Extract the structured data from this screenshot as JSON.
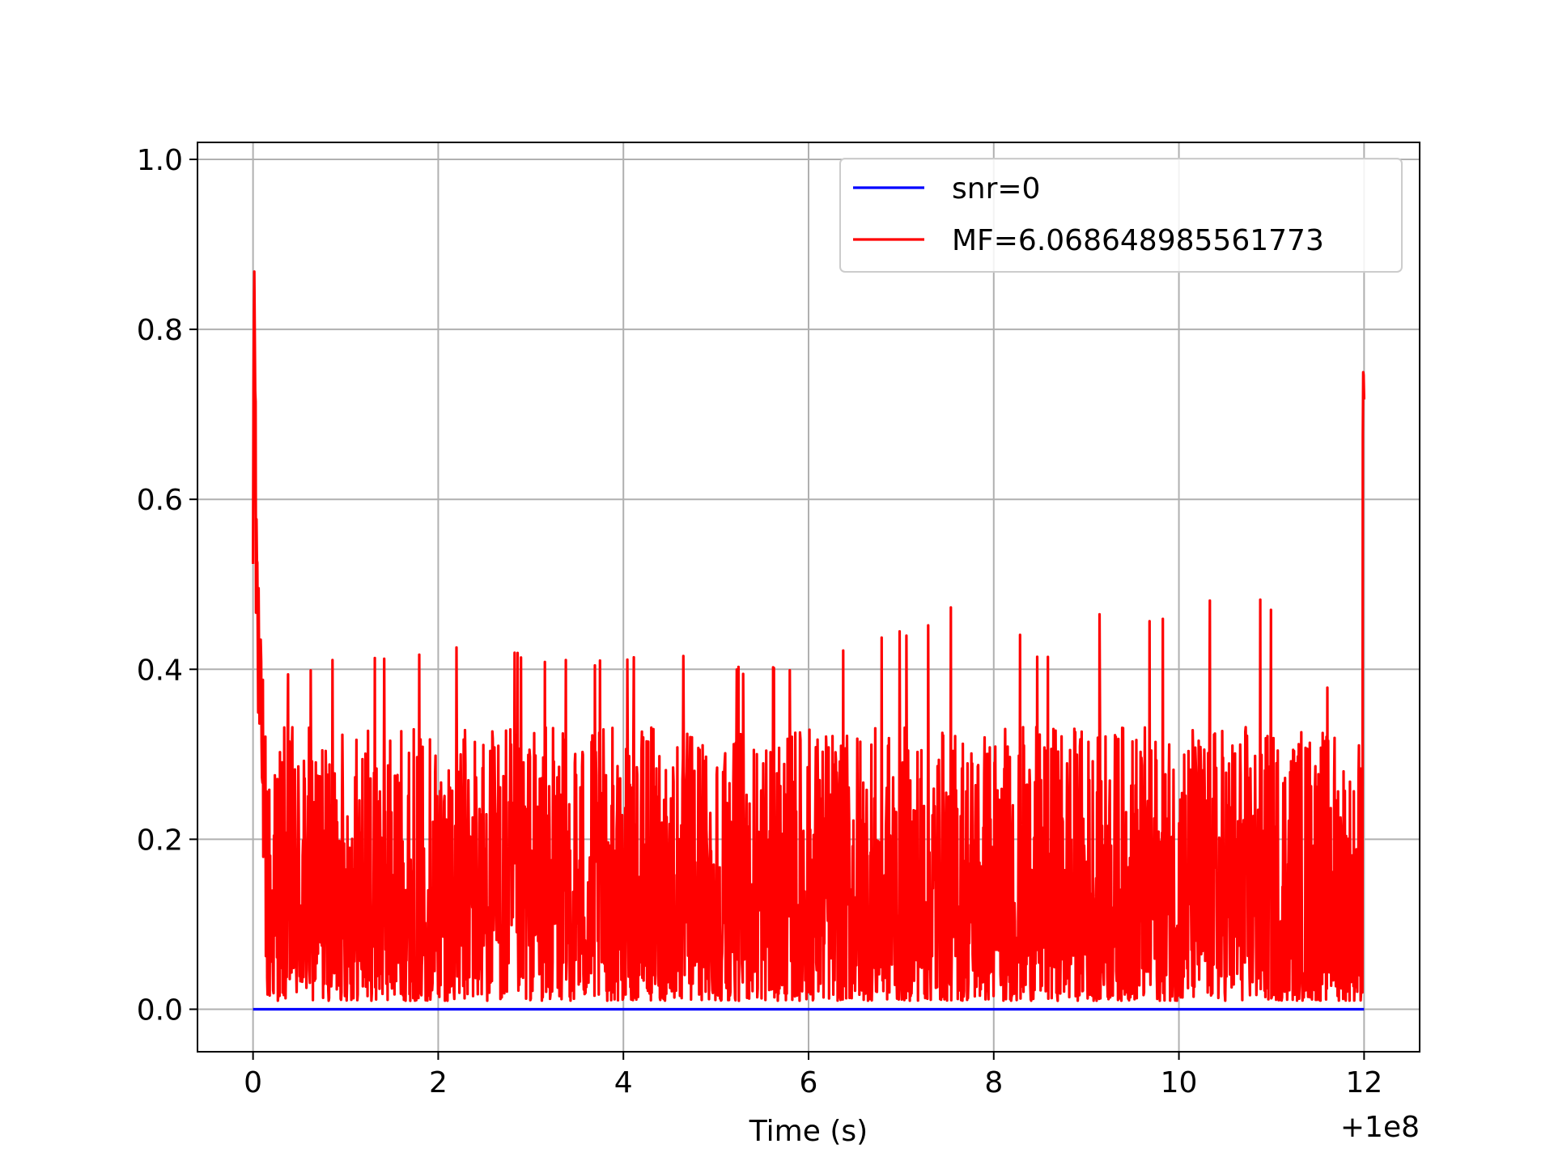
{
  "chart_data": {
    "type": "line",
    "title": "",
    "xlabel": "Time (s)",
    "ylabel": "",
    "x_offset_label": "+1e8",
    "xlim": [
      -0.6,
      12.6
    ],
    "ylim": [
      -0.05,
      1.02
    ],
    "x_ticks": [
      0,
      2,
      4,
      6,
      8,
      10,
      12
    ],
    "x_tick_labels": [
      "0",
      "2",
      "4",
      "6",
      "8",
      "10",
      "12"
    ],
    "y_ticks": [
      0.0,
      0.2,
      0.4,
      0.6,
      0.8,
      1.0
    ],
    "y_tick_labels": [
      "0.0",
      "0.2",
      "0.4",
      "0.6",
      "0.8",
      "1.0"
    ],
    "grid": true,
    "legend_position": "top-right",
    "series": [
      {
        "name": "snr=0",
        "color": "#0000ff",
        "x": [
          0,
          12
        ],
        "y": [
          0.0,
          0.0
        ]
      },
      {
        "name": "MF=6.068648985561773",
        "color": "#ff0000",
        "description_points": {
          "x": [
            0.0,
            0.01,
            0.02,
            0.03,
            0.05,
            0.08,
            0.12,
            0.16,
            0.2,
            0.3,
            1.2,
            2.35,
            3.65,
            4.65,
            5.4,
            6.0,
            6.6,
            7.3,
            7.95,
            8.5,
            9.3,
            9.75,
            10.7,
            11.5,
            11.9,
            11.98,
            12.0
          ],
          "y": [
            0.76,
            0.97,
            0.95,
            0.73,
            0.57,
            0.45,
            0.41,
            0.3,
            0.26,
            0.39,
            0.41,
            0.42,
            0.4,
            0.41,
            0.39,
            0.4,
            0.42,
            0.45,
            0.5,
            0.4,
            0.47,
            0.45,
            0.5,
            0.41,
            0.27,
            0.43,
            0.76
          ]
        },
        "typical_range": [
          0.0,
          0.35
        ]
      }
    ]
  }
}
